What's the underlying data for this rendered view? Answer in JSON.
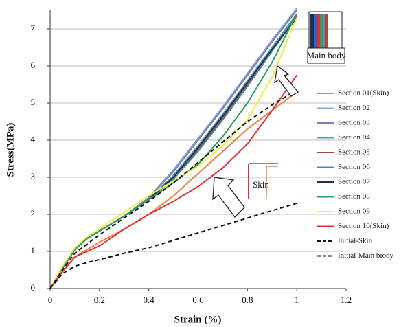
{
  "chart_data": {
    "type": "line",
    "x_label": "Strain (%)",
    "y_label": "Stress(MPa)",
    "x": [
      0,
      0.05,
      0.1,
      0.15,
      0.2,
      0.3,
      0.4,
      0.5,
      0.6,
      0.7,
      0.8,
      0.9,
      1.0
    ],
    "series": [
      {
        "name": "Section 01(Skin)",
        "color": "#e8823c",
        "dash": false,
        "values": [
          0,
          0.45,
          0.85,
          1.05,
          1.25,
          1.6,
          2.0,
          2.5,
          3.1,
          3.7,
          4.3,
          4.8,
          5.3
        ]
      },
      {
        "name": "Section 02",
        "color": "#7fa8e0",
        "dash": false,
        "values": [
          0,
          0.55,
          1.05,
          1.35,
          1.55,
          1.95,
          2.45,
          3.2,
          4.05,
          4.9,
          5.8,
          6.7,
          7.55
        ]
      },
      {
        "name": "Section 03",
        "color": "#8e74b0",
        "dash": false,
        "values": [
          0,
          0.55,
          1.05,
          1.35,
          1.55,
          1.95,
          2.45,
          3.15,
          4.0,
          4.85,
          5.75,
          6.65,
          7.5
        ]
      },
      {
        "name": "Section 04",
        "color": "#4aa0b0",
        "dash": false,
        "values": [
          0,
          0.55,
          1.05,
          1.35,
          1.55,
          1.95,
          2.4,
          3.05,
          3.85,
          4.7,
          5.6,
          6.5,
          7.4
        ]
      },
      {
        "name": "Section 05",
        "color": "#a04a40",
        "dash": false,
        "values": [
          0,
          0.55,
          1.05,
          1.35,
          1.55,
          1.95,
          2.4,
          3.0,
          3.75,
          4.6,
          5.5,
          6.4,
          7.35
        ]
      },
      {
        "name": "Section 06",
        "color": "#4a8aa8",
        "dash": false,
        "values": [
          0,
          0.55,
          1.05,
          1.35,
          1.55,
          1.95,
          2.4,
          2.95,
          3.7,
          4.55,
          5.45,
          6.4,
          7.4
        ]
      },
      {
        "name": "Section 07",
        "color": "#1f3050",
        "dash": false,
        "values": [
          0,
          0.55,
          1.05,
          1.35,
          1.55,
          1.95,
          2.4,
          3.0,
          3.8,
          4.65,
          5.55,
          6.45,
          7.3
        ]
      },
      {
        "name": "Section 08",
        "color": "#2aa060",
        "dash": false,
        "values": [
          0,
          0.55,
          1.05,
          1.35,
          1.55,
          1.95,
          2.4,
          2.85,
          3.35,
          4.1,
          5.0,
          6.1,
          7.4
        ]
      },
      {
        "name": "Section 09",
        "color": "#f0ec3c",
        "dash": false,
        "values": [
          0,
          0.6,
          1.1,
          1.4,
          1.6,
          2.05,
          2.5,
          2.9,
          3.3,
          3.85,
          4.55,
          5.7,
          7.3
        ]
      },
      {
        "name": "Section 10(Skin)",
        "color": "#e03030",
        "dash": false,
        "values": [
          0,
          0.45,
          0.85,
          1.0,
          1.15,
          1.6,
          2.0,
          2.35,
          2.75,
          3.25,
          3.9,
          4.8,
          5.75
        ]
      },
      {
        "name": "Initial-Skin",
        "color": "#111111",
        "dash": true,
        "values": [
          0,
          0.5,
          0.95,
          1.2,
          1.45,
          1.9,
          2.35,
          2.85,
          3.4,
          3.95,
          4.5,
          4.95,
          5.35
        ]
      },
      {
        "name": "Initial-Main biody",
        "color": "#111111",
        "dash": true,
        "values": [
          0,
          0.4,
          0.6,
          0.7,
          0.78,
          0.95,
          1.1,
          1.3,
          1.5,
          1.7,
          1.9,
          2.1,
          2.3
        ]
      }
    ],
    "annotations": [
      "Main body",
      "Skin"
    ],
    "xlim": [
      0,
      1.2
    ],
    "ylim": [
      0,
      7.5
    ],
    "xticks": [
      0,
      0.2,
      0.4,
      0.6,
      0.8,
      1,
      1.2
    ],
    "yticks": [
      0,
      1,
      2,
      3,
      4,
      5,
      6,
      7
    ],
    "grid": true,
    "legend": "right"
  }
}
